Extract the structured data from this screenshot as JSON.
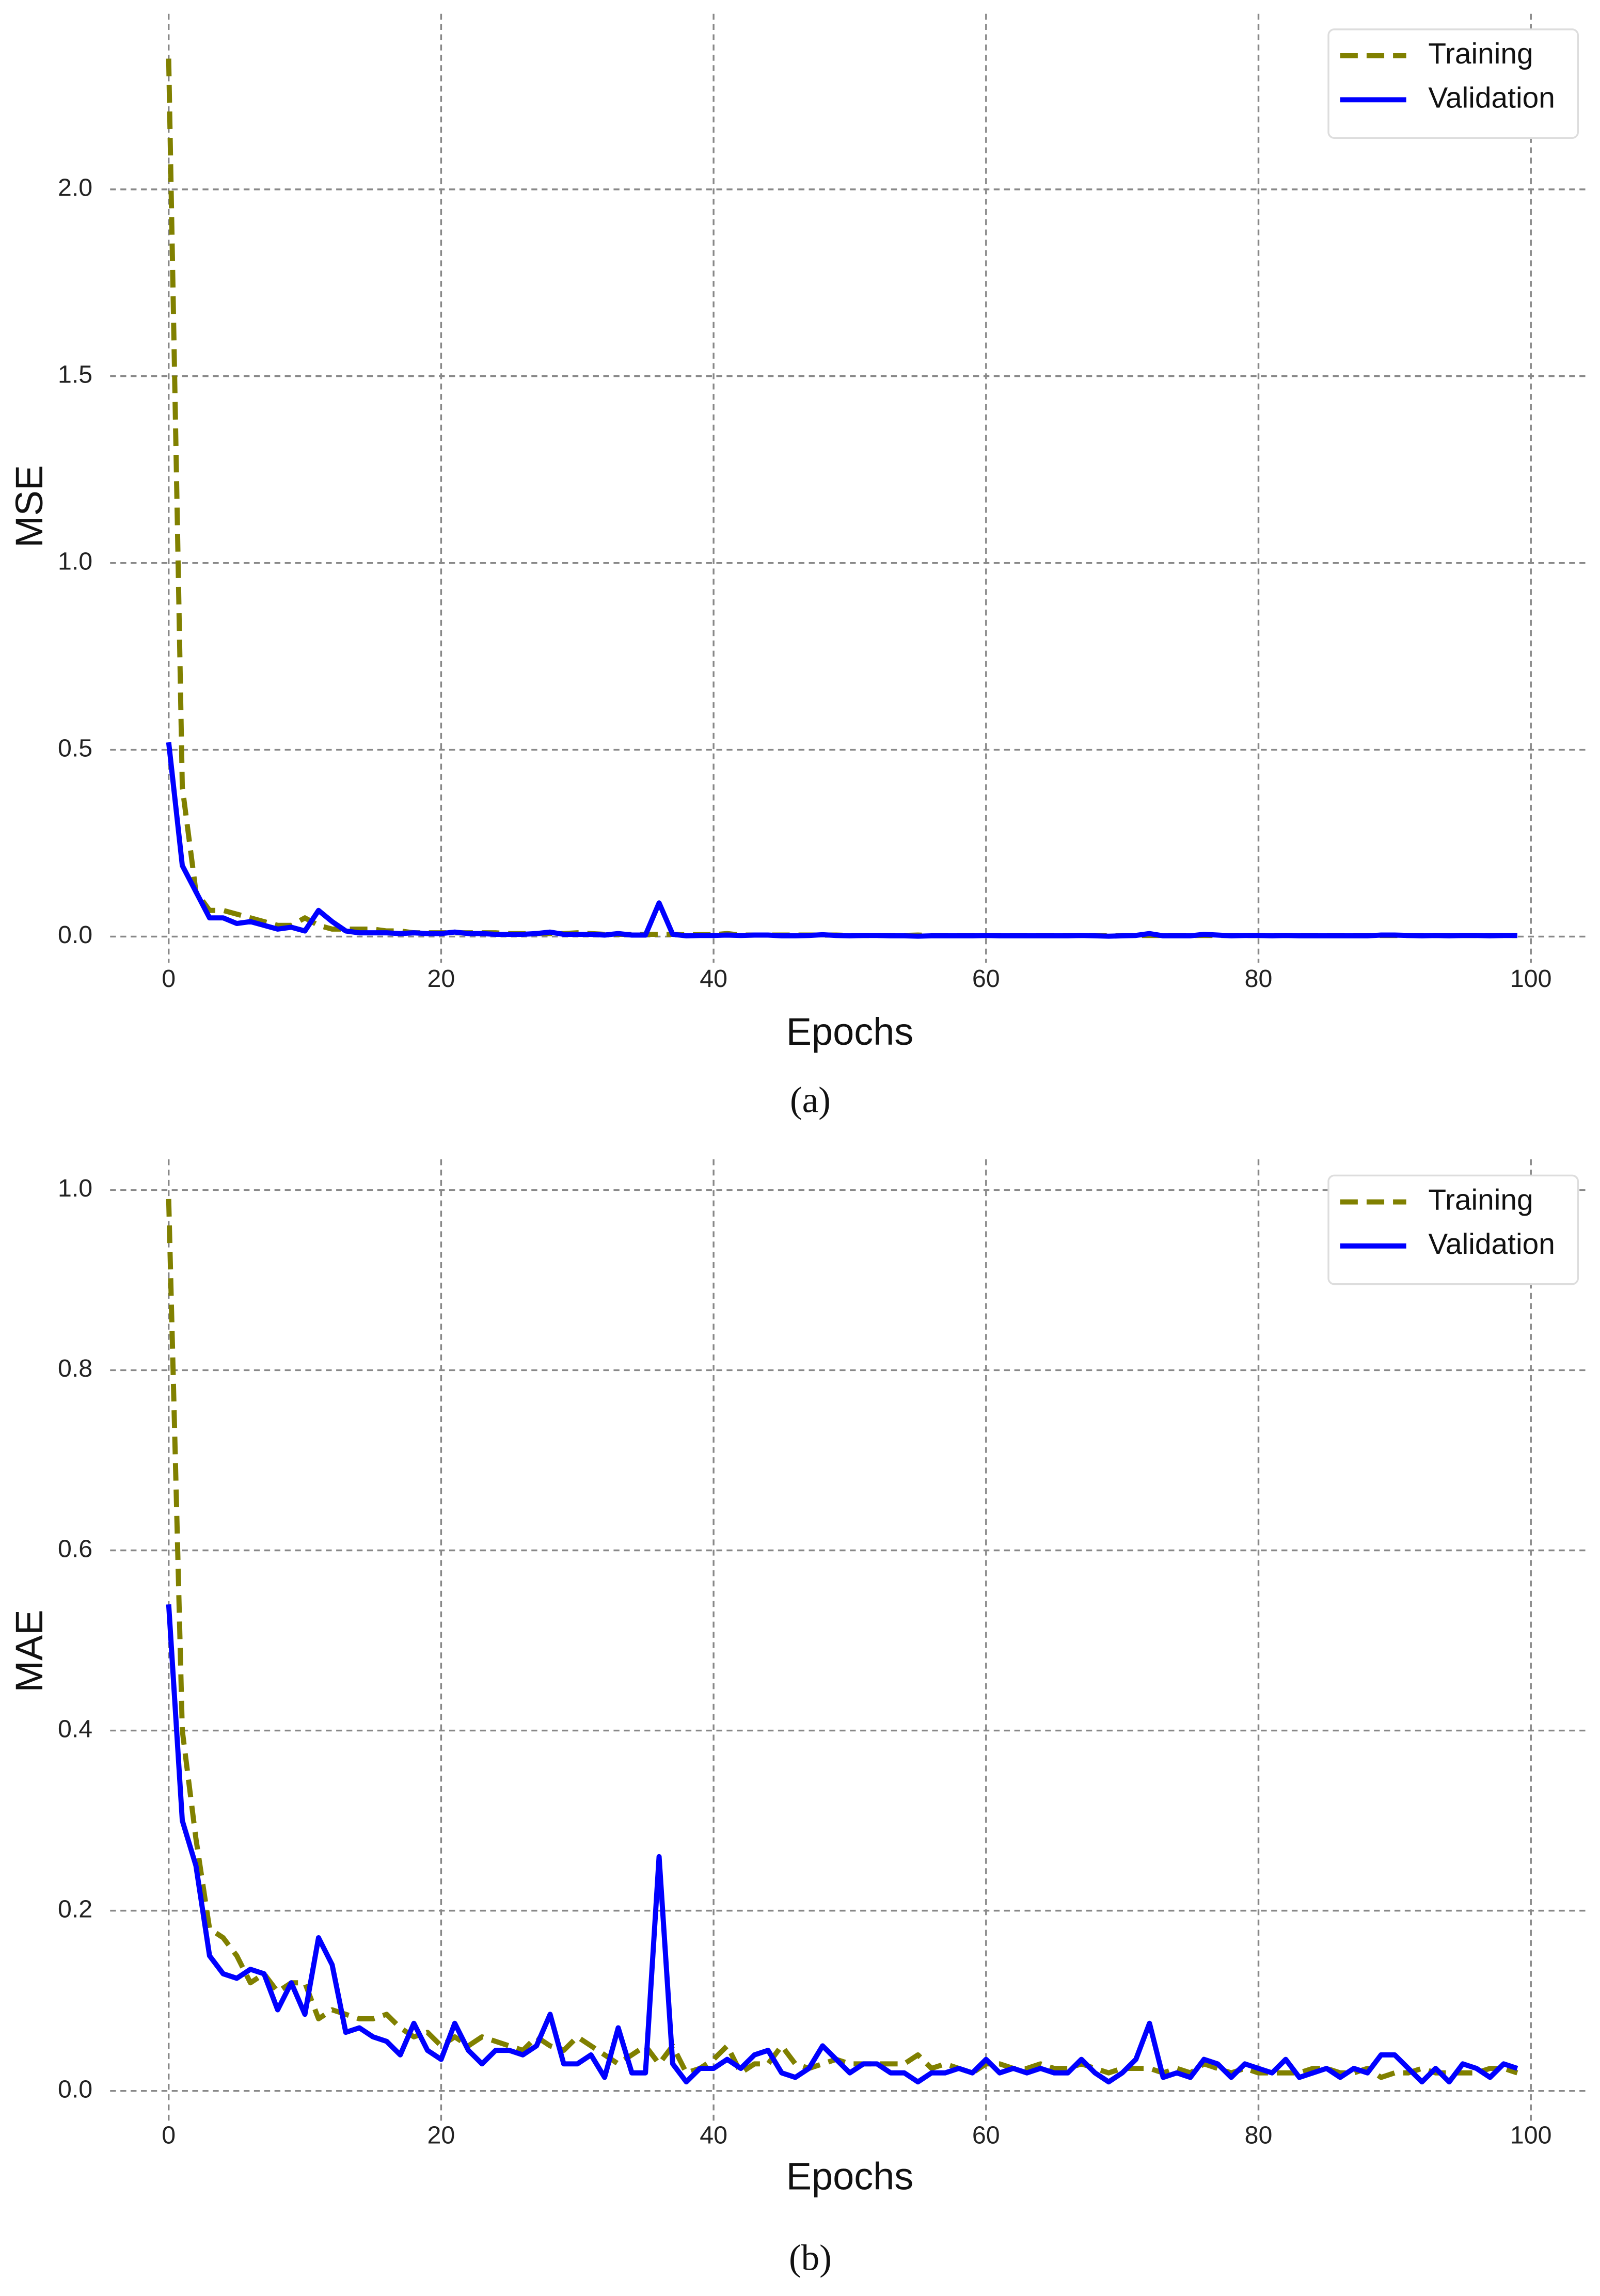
{
  "chart_data": [
    {
      "type": "line",
      "caption": "(a)",
      "xlabel": "Epochs",
      "ylabel": "MSE",
      "grid": true,
      "legend": "upper right",
      "xlim": [
        -4.3,
        104.1
      ],
      "xticks": [
        0,
        20,
        40,
        60,
        80,
        100
      ],
      "ylim": [
        -0.07,
        2.47
      ],
      "yticks": [
        {
          "value": 0,
          "label": "0.0"
        },
        0.5,
        {
          "value": 1,
          "label": "1.0"
        },
        1.5,
        {
          "value": 2,
          "label": "2.0"
        }
      ],
      "x": [
        0,
        1,
        2,
        3,
        4,
        5,
        6,
        7,
        8,
        9,
        10,
        11,
        12,
        13,
        14,
        15,
        16,
        17,
        18,
        19,
        20,
        21,
        22,
        23,
        24,
        25,
        26,
        27,
        28,
        29,
        30,
        31,
        32,
        33,
        34,
        35,
        36,
        37,
        38,
        39,
        40,
        41,
        42,
        43,
        44,
        45,
        46,
        47,
        48,
        49,
        50,
        51,
        52,
        53,
        54,
        55,
        56,
        57,
        58,
        59,
        60,
        61,
        62,
        63,
        64,
        65,
        66,
        67,
        68,
        69,
        70,
        71,
        72,
        73,
        74,
        75,
        76,
        77,
        78,
        79,
        80,
        81,
        82,
        83,
        84,
        85,
        86,
        87,
        88,
        89,
        90,
        91,
        92,
        93,
        94,
        95,
        96,
        97,
        98,
        99
      ],
      "series": [
        {
          "name": "Training",
          "color": "#808000",
          "linestyle": "dashed",
          "values": [
            2.35,
            0.4,
            0.12,
            0.07,
            0.07,
            0.06,
            0.05,
            0.04,
            0.03,
            0.03,
            0.05,
            0.03,
            0.02,
            0.02,
            0.02,
            0.02,
            0.015,
            0.015,
            0.01,
            0.01,
            0.01,
            0.01,
            0.01,
            0.01,
            0.01,
            0.008,
            0.008,
            0.008,
            0.008,
            0.008,
            0.01,
            0.008,
            0.006,
            0.006,
            0.006,
            0.006,
            0.006,
            0.006,
            0.005,
            0.005,
            0.005,
            0.008,
            0.004,
            0.004,
            0.004,
            0.004,
            0.004,
            0.004,
            0.004,
            0.004,
            0.003,
            0.003,
            0.003,
            0.003,
            0.003,
            0.004,
            0.003,
            0.003,
            0.003,
            0.003,
            0.003,
            0.003,
            0.003,
            0.003,
            0.003,
            0.003,
            0.003,
            0.003,
            0.003,
            0.003,
            0.003,
            0.003,
            0.003,
            0.003,
            0.003,
            0.003,
            0.003,
            0.003,
            0.003,
            0.003,
            0.003,
            0.003,
            0.003,
            0.003,
            0.003,
            0.003,
            0.003,
            0.003,
            0.003,
            0.003,
            0.003,
            0.003,
            0.003,
            0.003,
            0.003,
            0.003,
            0.003,
            0.003,
            0.003,
            0.003
          ]
        },
        {
          "name": "Validation",
          "color": "#0000ff",
          "linestyle": "solid",
          "values": [
            0.52,
            0.19,
            0.12,
            0.05,
            0.05,
            0.035,
            0.04,
            0.03,
            0.02,
            0.025,
            0.015,
            0.07,
            0.04,
            0.015,
            0.01,
            0.01,
            0.01,
            0.008,
            0.01,
            0.008,
            0.008,
            0.012,
            0.008,
            0.008,
            0.006,
            0.006,
            0.006,
            0.008,
            0.012,
            0.006,
            0.006,
            0.006,
            0.004,
            0.008,
            0.004,
            0.004,
            0.09,
            0.006,
            0.002,
            0.003,
            0.003,
            0.004,
            0.003,
            0.004,
            0.004,
            0.002,
            0.002,
            0.003,
            0.005,
            0.003,
            0.002,
            0.003,
            0.003,
            0.002,
            0.002,
            0.001,
            0.002,
            0.002,
            0.002,
            0.002,
            0.003,
            0.002,
            0.002,
            0.002,
            0.002,
            0.002,
            0.002,
            0.003,
            0.002,
            0.001,
            0.002,
            0.003,
            0.008,
            0.002,
            0.002,
            0.002,
            0.006,
            0.004,
            0.002,
            0.003,
            0.003,
            0.002,
            0.003,
            0.002,
            0.002,
            0.002,
            0.002,
            0.002,
            0.002,
            0.004,
            0.004,
            0.003,
            0.002,
            0.003,
            0.002,
            0.003,
            0.003,
            0.002,
            0.003,
            0.003
          ]
        }
      ]
    },
    {
      "type": "line",
      "caption": "(b)",
      "xlabel": "Epochs",
      "ylabel": "MAE",
      "grid": true,
      "legend": "upper right",
      "xlim": [
        -4.3,
        104.1
      ],
      "xticks": [
        0,
        20,
        40,
        60,
        80,
        100
      ],
      "ylim": [
        -0.033,
        1.034
      ],
      "yticks": [
        {
          "value": 0,
          "label": "0.0"
        },
        0.2,
        0.4,
        0.6,
        0.8,
        {
          "value": 1,
          "label": "1.0"
        }
      ],
      "x": [
        0,
        1,
        2,
        3,
        4,
        5,
        6,
        7,
        8,
        9,
        10,
        11,
        12,
        13,
        14,
        15,
        16,
        17,
        18,
        19,
        20,
        21,
        22,
        23,
        24,
        25,
        26,
        27,
        28,
        29,
        30,
        31,
        32,
        33,
        34,
        35,
        36,
        37,
        38,
        39,
        40,
        41,
        42,
        43,
        44,
        45,
        46,
        47,
        48,
        49,
        50,
        51,
        52,
        53,
        54,
        55,
        56,
        57,
        58,
        59,
        60,
        61,
        62,
        63,
        64,
        65,
        66,
        67,
        68,
        69,
        70,
        71,
        72,
        73,
        74,
        75,
        76,
        77,
        78,
        79,
        80,
        81,
        82,
        83,
        84,
        85,
        86,
        87,
        88,
        89,
        90,
        91,
        92,
        93,
        94,
        95,
        96,
        97,
        98,
        99
      ],
      "series": [
        {
          "name": "Training",
          "color": "#808000",
          "linestyle": "dashed",
          "values": [
            0.99,
            0.4,
            0.28,
            0.18,
            0.17,
            0.15,
            0.12,
            0.13,
            0.11,
            0.12,
            0.12,
            0.08,
            0.09,
            0.085,
            0.08,
            0.08,
            0.085,
            0.07,
            0.06,
            0.065,
            0.05,
            0.06,
            0.05,
            0.06,
            0.055,
            0.05,
            0.045,
            0.06,
            0.05,
            0.045,
            0.06,
            0.05,
            0.04,
            0.03,
            0.04,
            0.05,
            0.03,
            0.05,
            0.02,
            0.025,
            0.035,
            0.05,
            0.02,
            0.03,
            0.03,
            0.05,
            0.03,
            0.025,
            0.03,
            0.035,
            0.03,
            0.03,
            0.03,
            0.03,
            0.03,
            0.04,
            0.025,
            0.03,
            0.025,
            0.02,
            0.03,
            0.03,
            0.025,
            0.025,
            0.03,
            0.025,
            0.025,
            0.03,
            0.025,
            0.02,
            0.025,
            0.025,
            0.025,
            0.02,
            0.025,
            0.02,
            0.03,
            0.025,
            0.02,
            0.025,
            0.02,
            0.02,
            0.02,
            0.02,
            0.025,
            0.025,
            0.02,
            0.02,
            0.025,
            0.015,
            0.02,
            0.02,
            0.025,
            0.02,
            0.02,
            0.02,
            0.02,
            0.025,
            0.025,
            0.02
          ]
        },
        {
          "name": "Validation",
          "color": "#0000ff",
          "linestyle": "solid",
          "values": [
            0.54,
            0.3,
            0.25,
            0.15,
            0.13,
            0.125,
            0.135,
            0.13,
            0.09,
            0.12,
            0.085,
            0.17,
            0.14,
            0.065,
            0.07,
            0.06,
            0.055,
            0.04,
            0.075,
            0.045,
            0.035,
            0.075,
            0.045,
            0.03,
            0.045,
            0.045,
            0.04,
            0.05,
            0.085,
            0.03,
            0.03,
            0.04,
            0.015,
            0.07,
            0.02,
            0.02,
            0.26,
            0.03,
            0.01,
            0.025,
            0.025,
            0.035,
            0.025,
            0.04,
            0.045,
            0.02,
            0.015,
            0.025,
            0.05,
            0.035,
            0.02,
            0.03,
            0.03,
            0.02,
            0.02,
            0.01,
            0.02,
            0.02,
            0.025,
            0.02,
            0.035,
            0.02,
            0.025,
            0.02,
            0.025,
            0.02,
            0.02,
            0.035,
            0.02,
            0.01,
            0.02,
            0.035,
            0.075,
            0.015,
            0.02,
            0.015,
            0.035,
            0.03,
            0.015,
            0.03,
            0.025,
            0.02,
            0.035,
            0.015,
            0.02,
            0.025,
            0.015,
            0.025,
            0.02,
            0.04,
            0.04,
            0.025,
            0.01,
            0.025,
            0.01,
            0.03,
            0.025,
            0.015,
            0.03,
            0.025
          ]
        }
      ]
    }
  ]
}
